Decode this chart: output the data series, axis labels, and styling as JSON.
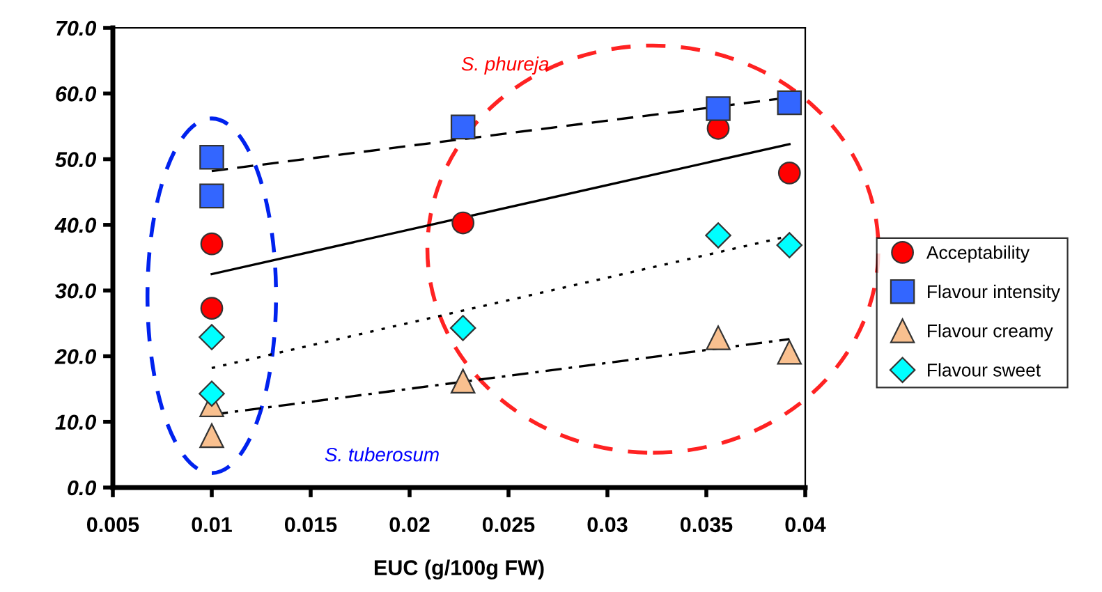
{
  "chart_data": {
    "type": "scatter",
    "xlabel": "EUC (g/100g FW)",
    "xlim": [
      0.005,
      0.04
    ],
    "xticks": [
      0.005,
      0.01,
      0.015,
      0.02,
      0.025,
      0.03,
      0.035,
      0.04
    ],
    "ylim": [
      0,
      70
    ],
    "yticks": [
      {
        "value": 0,
        "label": "0.0"
      },
      {
        "value": 10,
        "label": "10.0"
      },
      {
        "value": 20,
        "label": "20.0"
      },
      {
        "value": 30,
        "label": "30.0"
      },
      {
        "value": 40,
        "label": "40.0"
      },
      {
        "value": 50,
        "label": "50.0"
      },
      {
        "value": 60,
        "label": "60.0"
      },
      {
        "value": 70,
        "label": "70.0"
      }
    ],
    "grid": false,
    "legend": "right",
    "annotations": [
      "S. phureja",
      "S. tuberosum"
    ],
    "series": [
      {
        "name": "Acceptability",
        "color": "#ff0000",
        "marker": "circle",
        "x": [
          0.01,
          0.01,
          0.0227,
          0.0356,
          0.0392
        ],
        "values": [
          37.1,
          27.3,
          40.3,
          54.7,
          47.9
        ]
      },
      {
        "name": "Flavour intensity",
        "color": "#3366ff",
        "marker": "square",
        "x": [
          0.01,
          0.01,
          0.0227,
          0.0356,
          0.0392
        ],
        "values": [
          50.3,
          44.4,
          54.9,
          57.7,
          58.6
        ]
      },
      {
        "name": "Flavour creamy",
        "color": "#f9c08f",
        "marker": "triangle",
        "x": [
          0.01,
          0.01,
          0.0227,
          0.0356,
          0.0392
        ],
        "values": [
          12.6,
          7.9,
          16.2,
          22.8,
          20.6
        ]
      },
      {
        "name": "Flavour sweet",
        "color": "#00ffff",
        "marker": "diamond",
        "x": [
          0.01,
          0.01,
          0.0227,
          0.0356,
          0.0392
        ],
        "values": [
          22.9,
          14.3,
          24.3,
          38.4,
          36.9
        ]
      },
      {
        "type": "line",
        "color": "#000000",
        "line_style": "solid",
        "x": [
          0.01,
          0.0392
        ],
        "values": [
          32.5,
          52.3
        ]
      },
      {
        "type": "line",
        "color": "#000000",
        "line_style": "dashed",
        "x": [
          0.01,
          0.0392
        ],
        "values": [
          48.2,
          59.4
        ]
      },
      {
        "type": "line",
        "color": "#000000",
        "line_style": "dashdot",
        "x": [
          0.01,
          0.0392
        ],
        "values": [
          11.1,
          22.6
        ]
      },
      {
        "type": "line",
        "color": "#000000",
        "line_style": "dotted",
        "x": [
          0.01,
          0.0392
        ],
        "values": [
          18.2,
          38.3
        ]
      }
    ]
  }
}
